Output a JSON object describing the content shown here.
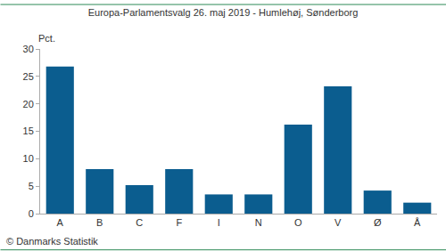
{
  "chart_data": {
    "type": "bar",
    "title": "Europa-Parlamentsvalg 26. maj 2019 - Humlehøj, Sønderborg",
    "y_label": "Pct.",
    "categories": [
      "A",
      "B",
      "C",
      "F",
      "I",
      "N",
      "O",
      "V",
      "Ø",
      "Å"
    ],
    "values": [
      26.8,
      8.1,
      5.2,
      8.1,
      3.5,
      3.5,
      16.2,
      23.2,
      4.2,
      2.0
    ],
    "color": "#0b5d8f",
    "ylim": [
      0,
      30
    ],
    "yticks": [
      0,
      5,
      10,
      15,
      20,
      25,
      30
    ],
    "grid": false,
    "annotations": [
      "© Danmarks Statistik"
    ]
  }
}
